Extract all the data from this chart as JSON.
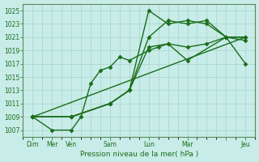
{
  "xlabel": "Pression niveau de la mer( hPa )",
  "bg_color": "#c8ece8",
  "grid_color": "#a8d4cc",
  "line_color": "#1a6e1a",
  "spine_color": "#5a8a5a",
  "yticks": [
    1007,
    1009,
    1011,
    1013,
    1015,
    1017,
    1019,
    1021,
    1023,
    1025
  ],
  "ylim": [
    1006.0,
    1026.0
  ],
  "xlim": [
    0,
    24
  ],
  "xtick_positions": [
    1,
    3,
    5,
    9,
    13,
    17,
    21,
    23
  ],
  "xtick_labels": [
    "Dim",
    "Mer",
    "Ven",
    "Sam",
    "Lun",
    "Mar",
    "",
    "Jeu"
  ],
  "grid_xticks": [
    0,
    1,
    2,
    3,
    4,
    5,
    6,
    7,
    8,
    9,
    10,
    11,
    12,
    13,
    14,
    15,
    16,
    17,
    18,
    19,
    20,
    21,
    22,
    23,
    24
  ],
  "series1_x": [
    1,
    3,
    5,
    6,
    7,
    8,
    9,
    10,
    11,
    13,
    14,
    15,
    17,
    21,
    23
  ],
  "series1_y": [
    1009,
    1007,
    1007,
    1009,
    1014,
    1016,
    1016.5,
    1018,
    1017.5,
    1019,
    1019.5,
    1020,
    1017.5,
    1021,
    1017
  ],
  "series2_x": [
    1,
    5,
    9,
    11,
    13,
    15,
    17,
    19,
    21,
    23
  ],
  "series2_y": [
    1009,
    1009,
    1011,
    1013,
    1019.5,
    1020,
    1019.5,
    1020,
    1021,
    1020.5
  ],
  "series3_x": [
    1,
    5,
    9,
    11,
    13,
    15,
    17,
    19,
    21,
    23
  ],
  "series3_y": [
    1009,
    1009,
    1011,
    1013,
    1021,
    1023.5,
    1023,
    1023.5,
    1021,
    1021
  ],
  "series4_x": [
    1,
    5,
    9,
    11,
    13,
    15,
    17,
    19,
    21,
    23
  ],
  "series4_y": [
    1009,
    1009,
    1011,
    1013,
    1025,
    1023,
    1023.5,
    1023,
    1021,
    1021
  ],
  "series5_x": [
    1,
    23
  ],
  "series5_y": [
    1009,
    1021
  ],
  "marker": "D",
  "markersize": 2.5,
  "linewidth": 1.0
}
